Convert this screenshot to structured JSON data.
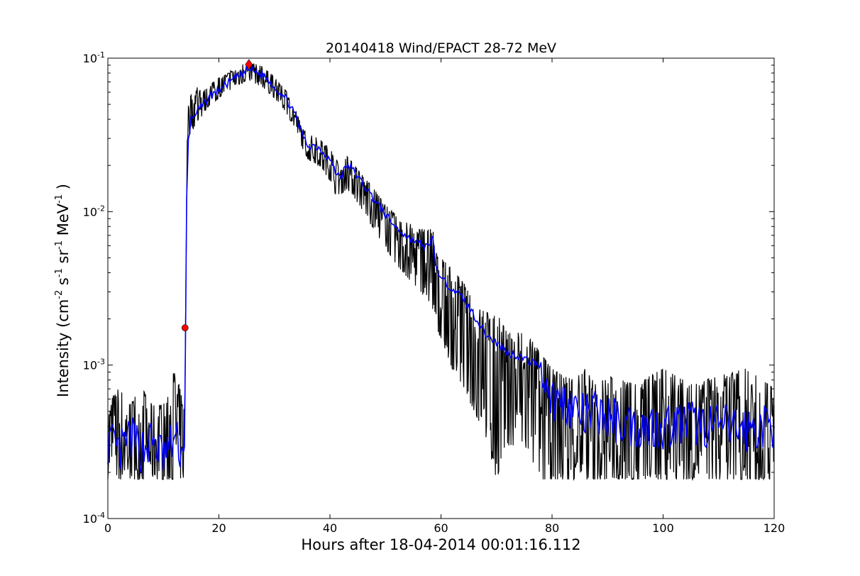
{
  "chart_data": {
    "type": "line",
    "title": "20140418 Wind/EPACT 28-72 MeV",
    "xlabel": "Hours after 18-04-2014 00:01:16.112",
    "ylabel": {
      "base": "Intensity (cm",
      "s1": "-2",
      "t2": " s",
      "s2": "-1",
      "t3": " sr",
      "s3": "-1",
      "t4": " MeV",
      "s4": "-1",
      "t5": " )"
    },
    "xlim": [
      0,
      120
    ],
    "ylim": [
      0.0001,
      0.1
    ],
    "yscale": "log",
    "grid": false,
    "x_ticks": [
      {
        "label": "0",
        "value": 0
      },
      {
        "label": "20",
        "value": 20
      },
      {
        "label": "40",
        "value": 40
      },
      {
        "label": "60",
        "value": 60
      },
      {
        "label": "80",
        "value": 80
      },
      {
        "label": "100",
        "value": 100
      },
      {
        "label": "120",
        "value": 120
      }
    ],
    "y_ticks": [
      {
        "base": "10",
        "exp": "-4",
        "value": 0.0001
      },
      {
        "base": "10",
        "exp": "-3",
        "value": 0.001
      },
      {
        "base": "10",
        "exp": "-2",
        "value": 0.01
      },
      {
        "base": "10",
        "exp": "-1",
        "value": 0.1
      }
    ],
    "series": [
      {
        "role": "raw",
        "color": "#000000",
        "x": [
          0,
          2,
          4,
          6,
          8,
          10,
          12,
          13.8,
          14,
          14.3,
          15,
          16,
          17,
          18,
          20,
          22,
          24,
          25.4,
          26,
          28,
          30,
          32,
          34,
          35,
          36,
          38,
          40,
          41,
          42,
          43,
          44,
          46,
          48,
          50,
          52,
          54,
          56,
          58,
          58.5,
          59,
          60,
          62,
          64,
          66,
          68,
          70,
          72,
          74,
          76,
          78,
          79,
          80,
          82,
          84,
          86,
          88,
          90,
          95,
          100,
          105,
          110,
          115,
          120
        ],
        "y_low": [
          0.00018,
          0.00018,
          0.00018,
          0.00018,
          0.00018,
          0.00018,
          0.00018,
          0.00018,
          0.0017,
          0.028,
          0.034,
          0.036,
          0.042,
          0.048,
          0.055,
          0.062,
          0.068,
          0.072,
          0.07,
          0.064,
          0.055,
          0.045,
          0.033,
          0.026,
          0.022,
          0.02,
          0.016,
          0.013,
          0.013,
          0.014,
          0.013,
          0.01,
          0.0075,
          0.0058,
          0.0045,
          0.0037,
          0.0031,
          0.0025,
          0.0022,
          0.0018,
          0.0015,
          0.00095,
          0.0007,
          0.0005,
          0.00035,
          0.00018,
          0.0003,
          0.0003,
          0.00025,
          0.00018,
          0.00018,
          0.00018,
          0.00018,
          0.00018,
          0.00018,
          0.00018,
          0.00018,
          0.00018,
          0.00018,
          0.00018,
          0.00018,
          0.00018,
          0.00018
        ],
        "y_high": [
          0.00055,
          0.00072,
          0.00055,
          0.00072,
          0.00055,
          0.00055,
          0.00095,
          0.00055,
          0.0023,
          0.048,
          0.058,
          0.065,
          0.06,
          0.065,
          0.075,
          0.082,
          0.09,
          0.095,
          0.093,
          0.088,
          0.075,
          0.062,
          0.045,
          0.035,
          0.032,
          0.03,
          0.026,
          0.022,
          0.02,
          0.023,
          0.021,
          0.017,
          0.014,
          0.011,
          0.0095,
          0.0085,
          0.0078,
          0.0075,
          0.0085,
          0.0055,
          0.005,
          0.0042,
          0.0035,
          0.0025,
          0.0022,
          0.0022,
          0.0016,
          0.0017,
          0.0015,
          0.0012,
          0.00105,
          0.00095,
          0.00085,
          0.0008,
          0.00095,
          0.00075,
          0.00085,
          0.00075,
          0.00095,
          0.00075,
          0.00085,
          0.00095,
          0.0007
        ]
      },
      {
        "role": "smoothed",
        "color": "#0000ff",
        "x": [
          0,
          2,
          4,
          6,
          8,
          10,
          12,
          13.5,
          13.8,
          14,
          14.2,
          14.5,
          15,
          16,
          17,
          18,
          20,
          22,
          24,
          25.4,
          26,
          28,
          30,
          32,
          33,
          34,
          35,
          36,
          37,
          38,
          40,
          41,
          42,
          43,
          44,
          46,
          48,
          50,
          52,
          54,
          56,
          58,
          58.5,
          59,
          60,
          62,
          64,
          66,
          68,
          70,
          72,
          74,
          76,
          78,
          80,
          82,
          84,
          86,
          88,
          90,
          95,
          100,
          105,
          110,
          115,
          120
        ],
        "y": [
          0.00032,
          0.00026,
          0.00034,
          0.00028,
          0.00032,
          0.00025,
          0.00033,
          0.00027,
          0.0003,
          0.0017,
          0.012,
          0.029,
          0.04,
          0.045,
          0.048,
          0.055,
          0.062,
          0.07,
          0.078,
          0.085,
          0.083,
          0.078,
          0.065,
          0.055,
          0.048,
          0.04,
          0.032,
          0.027,
          0.027,
          0.026,
          0.022,
          0.018,
          0.017,
          0.02,
          0.019,
          0.015,
          0.012,
          0.0095,
          0.0078,
          0.0068,
          0.0062,
          0.0058,
          0.0072,
          0.0045,
          0.0036,
          0.0032,
          0.0027,
          0.0021,
          0.0016,
          0.0014,
          0.0012,
          0.00115,
          0.00105,
          0.001,
          0.0006,
          0.00058,
          0.00052,
          0.00045,
          0.0005,
          0.00045,
          0.0004,
          0.0004,
          0.00042,
          0.0004,
          0.00038,
          0.0004
        ]
      }
    ],
    "markers": [
      {
        "name": "onset",
        "x": 13.9,
        "y": 0.00175,
        "color": "#ff0000",
        "shape": "circle"
      },
      {
        "name": "peak",
        "x": 25.4,
        "y": 0.091,
        "color": "#ff0000",
        "shape": "diamond"
      }
    ]
  }
}
